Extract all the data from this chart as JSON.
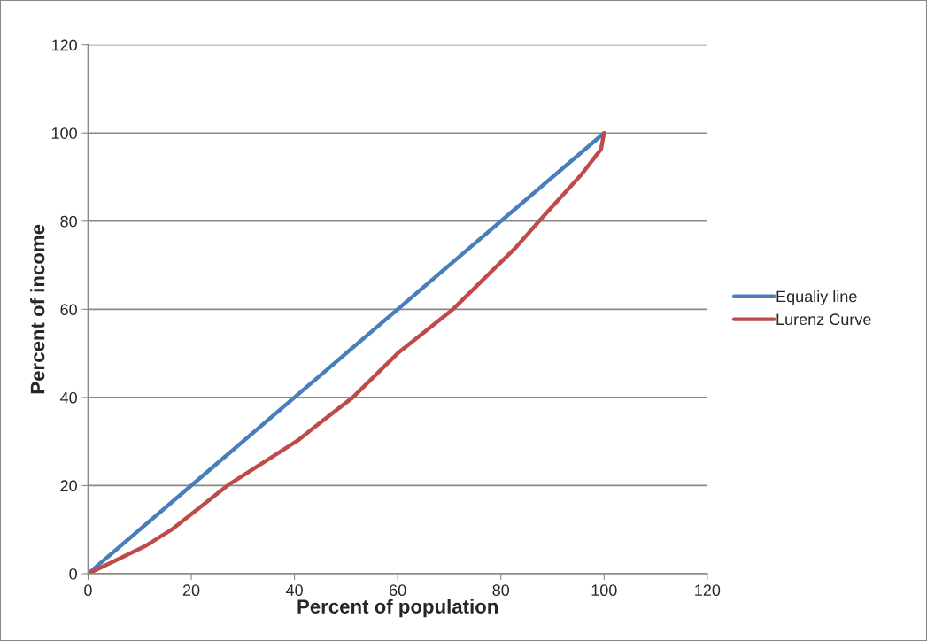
{
  "chart_data": {
    "type": "line",
    "xlabel": "Percent of population",
    "ylabel": "Percent of income",
    "xlim": [
      0,
      120
    ],
    "xticks": [
      0,
      20,
      40,
      60,
      80,
      100,
      120
    ],
    "ylim": [
      0,
      120
    ],
    "yticks": [
      0,
      20,
      40,
      60,
      80,
      100,
      120
    ],
    "grid": "y",
    "legend": "right",
    "marker": "none",
    "line_style": "solid",
    "series": [
      {
        "name": "Equaliy line",
        "color": "#4a7ebb",
        "x": [
          0,
          100
        ],
        "values": [
          0,
          100
        ]
      },
      {
        "name": "Lurenz Curve",
        "color": "#be4b48",
        "x": [
          0,
          5,
          11,
          16.2,
          27,
          40.6,
          43.8,
          51.3,
          60,
          70.7,
          82.8,
          87.4,
          95.4,
          99.4,
          100
        ],
        "values": [
          0,
          2.8,
          6.2,
          10,
          20,
          30.2,
          33.2,
          40,
          50,
          60,
          73.9,
          80,
          90.3,
          96.3,
          100
        ]
      }
    ]
  }
}
